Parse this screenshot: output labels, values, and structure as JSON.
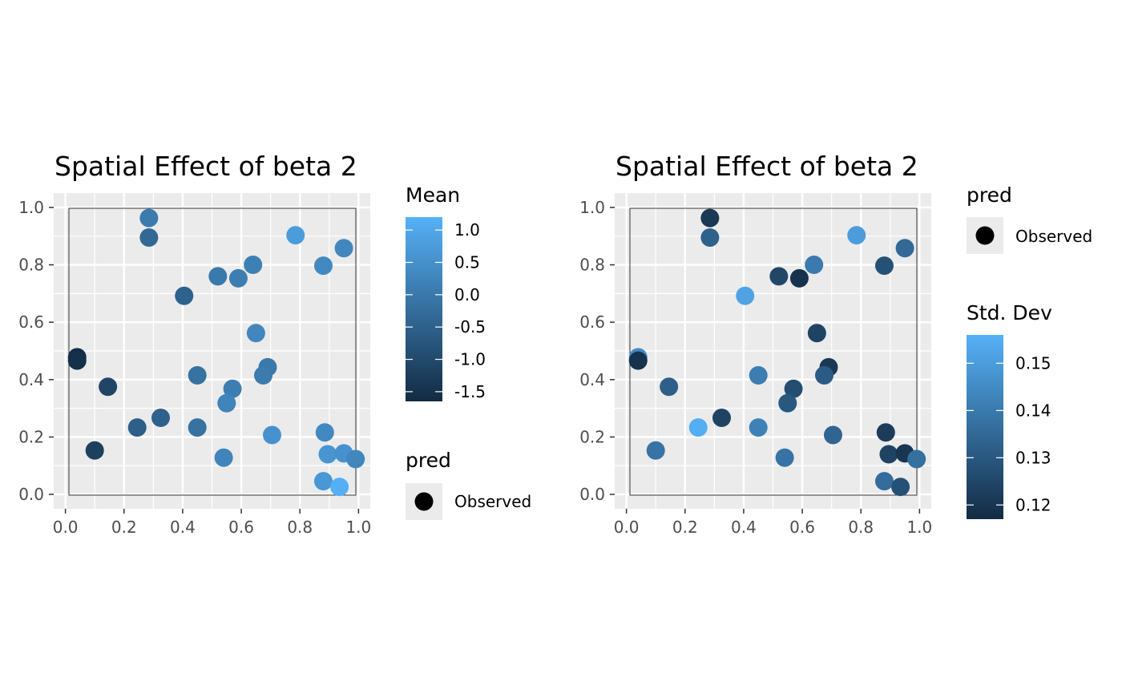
{
  "chart_data": [
    {
      "type": "scatter",
      "title": "Spatial Effect of beta 2",
      "xlabel": "",
      "ylabel": "",
      "xlim": [
        -0.04,
        1.04
      ],
      "ylim": [
        -0.05,
        1.05
      ],
      "x_ticks": [
        "0.0",
        "0.2",
        "0.4",
        "0.6",
        "0.8",
        "1.0"
      ],
      "y_ticks": [
        "0.0",
        "0.2",
        "0.4",
        "0.6",
        "0.8",
        "1.0"
      ],
      "grid": true,
      "panel_background": "#ebebeb",
      "points": [
        {
          "x": 0.285,
          "y": 0.963,
          "mean": 0.05,
          "sd": 0.121
        },
        {
          "x": 0.285,
          "y": 0.895,
          "mean": -0.35,
          "sd": 0.133
        },
        {
          "x": 0.785,
          "y": 0.903,
          "mean": 0.75,
          "sd": 0.15
        },
        {
          "x": 0.95,
          "y": 0.858,
          "mean": 0.3,
          "sd": 0.135
        },
        {
          "x": 0.88,
          "y": 0.797,
          "mean": 0.35,
          "sd": 0.128
        },
        {
          "x": 0.64,
          "y": 0.8,
          "mean": 0.15,
          "sd": 0.14
        },
        {
          "x": 0.52,
          "y": 0.76,
          "mean": 0.0,
          "sd": 0.125
        },
        {
          "x": 0.59,
          "y": 0.753,
          "mean": 0.1,
          "sd": 0.119
        },
        {
          "x": 0.405,
          "y": 0.692,
          "mean": -0.5,
          "sd": 0.152
        },
        {
          "x": 0.65,
          "y": 0.562,
          "mean": 0.3,
          "sd": 0.124
        },
        {
          "x": 0.04,
          "y": 0.478,
          "mean": -1.6,
          "sd": 0.145
        },
        {
          "x": 0.04,
          "y": 0.466,
          "mean": -1.55,
          "sd": 0.119
        },
        {
          "x": 0.45,
          "y": 0.415,
          "mean": -0.15,
          "sd": 0.141
        },
        {
          "x": 0.69,
          "y": 0.443,
          "mean": 0.0,
          "sd": 0.121
        },
        {
          "x": 0.675,
          "y": 0.415,
          "mean": 0.05,
          "sd": 0.131
        },
        {
          "x": 0.145,
          "y": 0.375,
          "mean": -1.1,
          "sd": 0.132
        },
        {
          "x": 0.57,
          "y": 0.368,
          "mean": 0.1,
          "sd": 0.127
        },
        {
          "x": 0.55,
          "y": 0.318,
          "mean": 0.25,
          "sd": 0.13
        },
        {
          "x": 0.325,
          "y": 0.267,
          "mean": -0.5,
          "sd": 0.124
        },
        {
          "x": 0.245,
          "y": 0.233,
          "mean": -0.55,
          "sd": 0.155
        },
        {
          "x": 0.45,
          "y": 0.233,
          "mean": -0.15,
          "sd": 0.142
        },
        {
          "x": 0.705,
          "y": 0.207,
          "mean": 0.55,
          "sd": 0.134
        },
        {
          "x": 0.885,
          "y": 0.216,
          "mean": 0.35,
          "sd": 0.122
        },
        {
          "x": 0.1,
          "y": 0.153,
          "mean": -1.2,
          "sd": 0.138
        },
        {
          "x": 0.54,
          "y": 0.128,
          "mean": 0.25,
          "sd": 0.138
        },
        {
          "x": 0.895,
          "y": 0.14,
          "mean": 0.6,
          "sd": 0.124
        },
        {
          "x": 0.95,
          "y": 0.143,
          "mean": 0.55,
          "sd": 0.12
        },
        {
          "x": 0.99,
          "y": 0.123,
          "mean": 0.3,
          "sd": 0.137
        },
        {
          "x": 0.88,
          "y": 0.046,
          "mean": 0.65,
          "sd": 0.136
        },
        {
          "x": 0.935,
          "y": 0.026,
          "mean": 1.15,
          "sd": 0.128
        }
      ],
      "color_legend": {
        "title": "Mean",
        "variable": "mean",
        "range": [
          -1.65,
          1.2
        ],
        "breaks": [
          1.0,
          0.5,
          0.0,
          -0.5,
          -1.0,
          -1.5
        ],
        "labels": [
          "1.0",
          "0.5",
          "0.0",
          "-0.5",
          "-1.0",
          "-1.5"
        ],
        "low_color": "#132b43",
        "high_color": "#56b1f7"
      },
      "shape_legend": {
        "title": "pred",
        "label": "Observed"
      },
      "legend_placement": "right"
    },
    {
      "type": "scatter",
      "title": "Spatial Effect of beta 2",
      "xlabel": "",
      "ylabel": "",
      "xlim": [
        -0.04,
        1.04
      ],
      "ylim": [
        -0.05,
        1.05
      ],
      "x_ticks": [
        "0.0",
        "0.2",
        "0.4",
        "0.6",
        "0.8",
        "1.0"
      ],
      "y_ticks": [
        "0.0",
        "0.2",
        "0.4",
        "0.6",
        "0.8",
        "1.0"
      ],
      "grid": true,
      "panel_background": "#ebebeb",
      "points_from": 0,
      "shape_legend": {
        "title": "pred",
        "label": "Observed"
      },
      "color_legend": {
        "title": "Std. Dev",
        "variable": "sd",
        "range": [
          0.117,
          0.156
        ],
        "breaks": [
          0.15,
          0.14,
          0.13,
          0.12
        ],
        "labels": [
          "0.15",
          "0.14",
          "0.13",
          "0.12"
        ],
        "low_color": "#132b43",
        "high_color": "#56b1f7"
      },
      "legend_placement": "right"
    }
  ]
}
